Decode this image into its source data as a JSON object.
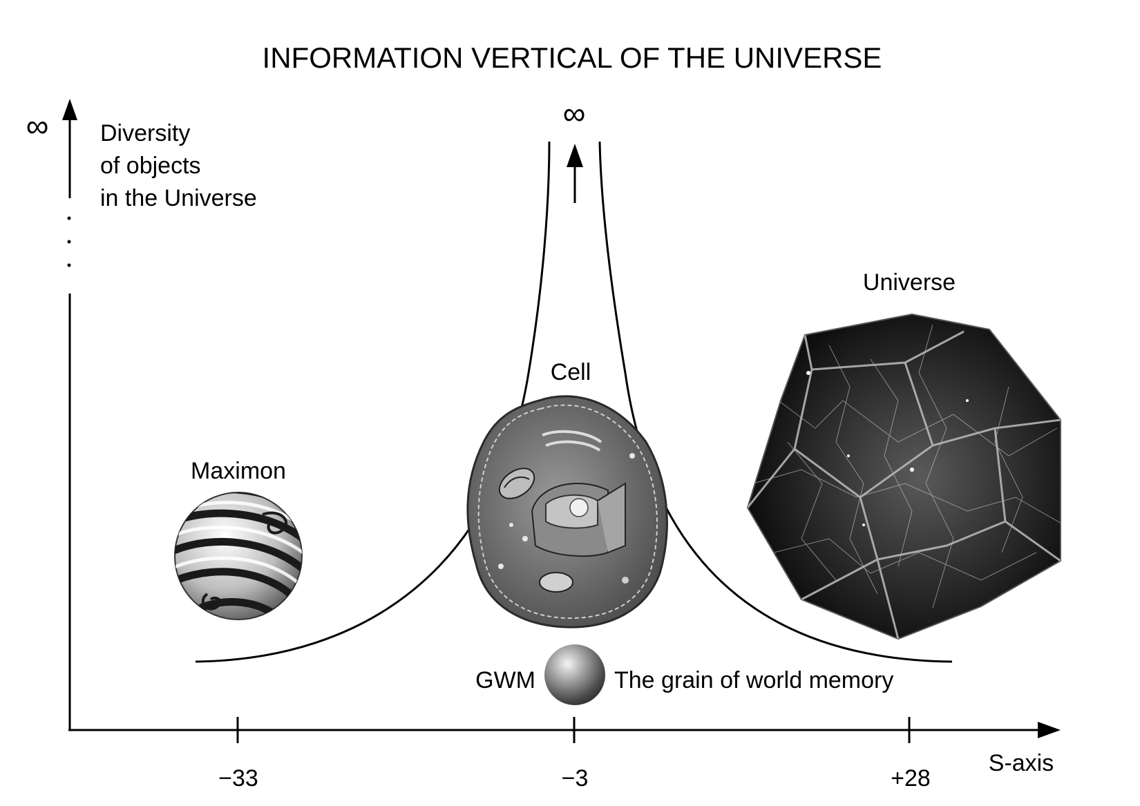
{
  "title": "INFORMATION VERTICAL OF THE UNIVERSE",
  "y_axis": {
    "label_lines": [
      "Diversity",
      "of objects",
      "in the Universe"
    ],
    "top_symbol": "∞"
  },
  "x_axis": {
    "label": "S-axis",
    "ticks": [
      "−33",
      "−3",
      "+28"
    ]
  },
  "curve": {
    "top_symbol": "∞"
  },
  "objects": {
    "maximon": {
      "label": "Maximon"
    },
    "cell": {
      "label": "Cell"
    },
    "universe": {
      "label": "Universe"
    },
    "gwm": {
      "label": "GWM",
      "description": "The grain of world memory"
    }
  },
  "colors": {
    "ink": "#000000",
    "background": "#ffffff",
    "universe_fill": "#0f0f0f",
    "cell_fill": "#6a6a6a"
  }
}
